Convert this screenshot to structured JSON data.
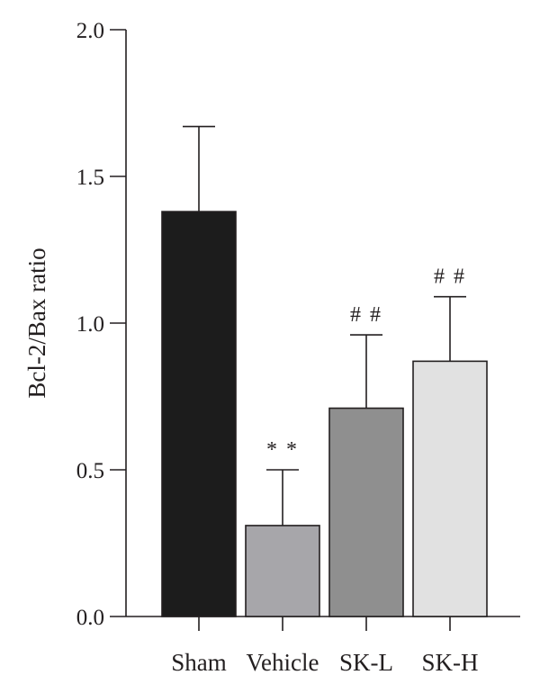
{
  "chart_data": {
    "type": "bar",
    "title": "",
    "xlabel": "",
    "ylabel": "Bcl-2/Bax ratio",
    "ylim": [
      0,
      2.0
    ],
    "yticks": [
      "0.0",
      "0.5",
      "1.0",
      "1.5",
      "2.0"
    ],
    "grid": false,
    "legend": "none",
    "categories": [
      "Sham",
      "Vehicle",
      "SK-L",
      "SK-H"
    ],
    "values": [
      1.38,
      0.31,
      0.71,
      0.87
    ],
    "errors": [
      0.29,
      0.19,
      0.25,
      0.22
    ],
    "annotations": [
      "",
      "**",
      "##",
      "##"
    ],
    "colors": [
      "#1c1c1c",
      "#a7a6aa",
      "#8f8f8f",
      "#e1e1e1"
    ]
  }
}
